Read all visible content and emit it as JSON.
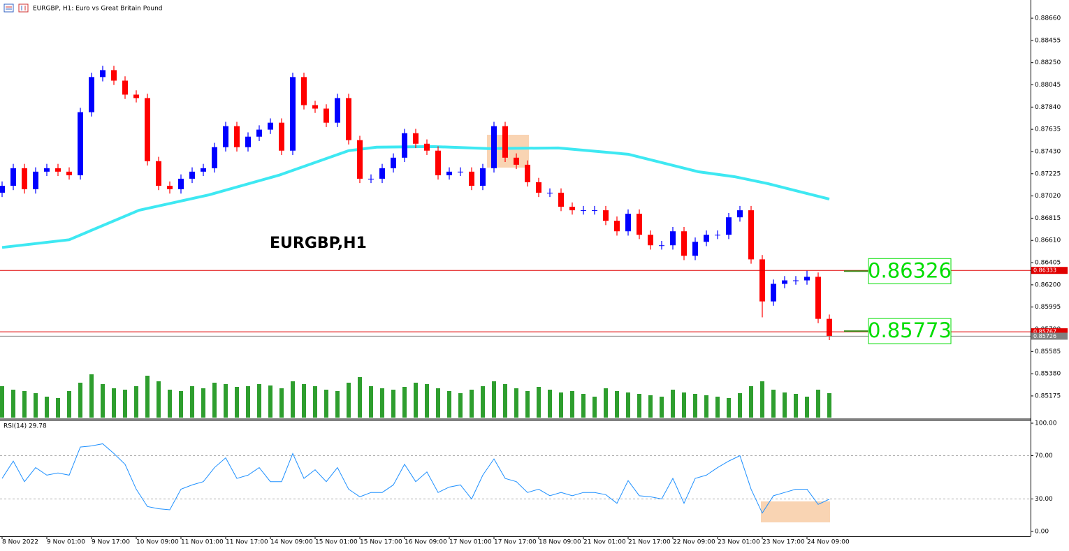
{
  "chart_data": {
    "type": "candlestick",
    "title": "EURGBP, H1:  Euro vs Great Britain Pound",
    "watermark": "EURGBP,H1",
    "up_color": "#0000ff",
    "down_color": "#ff0000",
    "x": [
      0,
      4,
      8,
      12,
      16,
      20,
      24,
      28,
      32,
      36,
      40,
      44,
      48,
      52,
      56,
      60,
      64,
      68,
      72,
      76,
      80,
      84,
      88,
      92,
      96,
      100,
      104,
      108,
      112,
      116,
      120,
      124,
      128,
      132,
      136,
      140,
      144,
      148,
      152,
      156,
      160,
      164,
      168,
      172,
      176,
      180,
      184,
      188,
      192,
      196,
      200,
      204,
      208,
      212,
      216,
      220,
      224,
      228,
      232,
      236,
      240,
      244,
      248,
      252,
      256,
      260,
      264,
      268,
      272,
      276,
      280,
      284,
      288,
      292,
      296
    ],
    "open": [
      0.8705,
      0.87114,
      0.87276,
      0.87082,
      0.87244,
      0.87276,
      0.87244,
      0.87211,
      0.87793,
      0.88117,
      0.88181,
      0.88084,
      0.87955,
      0.87923,
      0.87341,
      0.87114,
      0.87082,
      0.87179,
      0.87244,
      0.87276,
      0.8747,
      0.87664,
      0.8747,
      0.87567,
      0.87632,
      0.87696,
      0.87438,
      0.88117,
      0.87858,
      0.87826,
      0.87696,
      0.87923,
      0.87535,
      0.87179,
      0.87179,
      0.87276,
      0.87373,
      0.87599,
      0.87502,
      0.87438,
      0.87211,
      0.87244,
      0.87244,
      0.87114,
      0.87276,
      0.87664,
      0.87373,
      0.87308,
      0.87147,
      0.8705,
      0.8705,
      0.8692,
      0.86888,
      0.86888,
      0.86888,
      0.86791,
      0.86694,
      0.86856,
      0.86662,
      0.86565,
      0.86565,
      0.86694,
      0.86468,
      0.86597,
      0.86662,
      0.86662,
      0.86823,
      0.86888,
      0.86435,
      0.86047,
      0.86209,
      0.86241,
      0.86241,
      0.86274,
      0.85886
    ],
    "high": [
      0.87154,
      0.87316,
      0.87316,
      0.87284,
      0.87316,
      0.87316,
      0.87284,
      0.87833,
      0.88157,
      0.88221,
      0.88221,
      0.88124,
      0.87995,
      0.87963,
      0.87381,
      0.87154,
      0.87219,
      0.87284,
      0.87316,
      0.8751,
      0.87704,
      0.87704,
      0.87607,
      0.87672,
      0.87736,
      0.87736,
      0.88157,
      0.88157,
      0.87898,
      0.87866,
      0.87963,
      0.87963,
      0.87575,
      0.87219,
      0.87316,
      0.87413,
      0.87639,
      0.87639,
      0.87542,
      0.87478,
      0.87284,
      0.87284,
      0.87284,
      0.87316,
      0.87704,
      0.87704,
      0.87413,
      0.87348,
      0.87187,
      0.8709,
      0.8709,
      0.8696,
      0.86928,
      0.86928,
      0.86928,
      0.86831,
      0.86896,
      0.86896,
      0.86702,
      0.86605,
      0.86734,
      0.86734,
      0.86637,
      0.86702,
      0.86702,
      0.86863,
      0.86928,
      0.86928,
      0.86475,
      0.86249,
      0.86281,
      0.86281,
      0.8633,
      0.86314,
      0.85926
    ],
    "low": [
      0.8701,
      0.87074,
      0.87042,
      0.87042,
      0.87204,
      0.87204,
      0.87171,
      0.87171,
      0.87753,
      0.88077,
      0.88044,
      0.87915,
      0.87883,
      0.87301,
      0.87074,
      0.87042,
      0.87042,
      0.87139,
      0.87204,
      0.87236,
      0.8743,
      0.8743,
      0.8743,
      0.87527,
      0.87592,
      0.87398,
      0.87398,
      0.87818,
      0.87786,
      0.87656,
      0.87656,
      0.87495,
      0.87139,
      0.87139,
      0.87139,
      0.87236,
      0.87333,
      0.87462,
      0.87398,
      0.87171,
      0.87171,
      0.87204,
      0.87074,
      0.87074,
      0.87236,
      0.87333,
      0.87268,
      0.87107,
      0.8701,
      0.8701,
      0.8688,
      0.86848,
      0.86848,
      0.86848,
      0.86751,
      0.86654,
      0.86654,
      0.86622,
      0.86525,
      0.86525,
      0.86525,
      0.86428,
      0.86428,
      0.86557,
      0.86622,
      0.86622,
      0.86783,
      0.86395,
      0.859,
      0.86007,
      0.86169,
      0.86201,
      0.86201,
      0.85846,
      0.8569
    ],
    "close": [
      0.87114,
      0.87276,
      0.87082,
      0.87244,
      0.87276,
      0.87244,
      0.87211,
      0.87793,
      0.88117,
      0.88181,
      0.88084,
      0.87955,
      0.87923,
      0.87341,
      0.87114,
      0.87082,
      0.87179,
      0.87244,
      0.87276,
      0.8747,
      0.87664,
      0.8747,
      0.87567,
      0.87632,
      0.87696,
      0.87438,
      0.88117,
      0.87858,
      0.87826,
      0.87696,
      0.87923,
      0.87535,
      0.87179,
      0.87179,
      0.87276,
      0.87373,
      0.87599,
      0.87502,
      0.87438,
      0.87211,
      0.87244,
      0.87244,
      0.87114,
      0.87276,
      0.87664,
      0.87373,
      0.87308,
      0.87147,
      0.8705,
      0.8705,
      0.8692,
      0.86888,
      0.86888,
      0.86888,
      0.86791,
      0.86694,
      0.86856,
      0.86662,
      0.86565,
      0.86565,
      0.86694,
      0.86468,
      0.86597,
      0.86662,
      0.86662,
      0.86823,
      0.86888,
      0.86435,
      0.86047,
      0.86209,
      0.86241,
      0.86241,
      0.86274,
      0.85886,
      0.85726
    ],
    "xlim": [
      0,
      368
    ],
    "xticks": [
      {
        "value": 0,
        "label": "8 Nov 2022"
      },
      {
        "value": 16,
        "label": "9 Nov 01:00"
      },
      {
        "value": 32,
        "label": "9 Nov 17:00"
      },
      {
        "value": 48,
        "label": "10 Nov 09:00"
      },
      {
        "value": 64,
        "label": "11 Nov 01:00"
      },
      {
        "value": 80,
        "label": "11 Nov 17:00"
      },
      {
        "value": 96,
        "label": "14 Nov 09:00"
      },
      {
        "value": 112,
        "label": "15 Nov 01:00"
      },
      {
        "value": 128,
        "label": "15 Nov 17:00"
      },
      {
        "value": 144,
        "label": "16 Nov 09:00"
      },
      {
        "value": 160,
        "label": "17 Nov 01:00"
      },
      {
        "value": 176,
        "label": "17 Nov 17:00"
      },
      {
        "value": 192,
        "label": "18 Nov 09:00"
      },
      {
        "value": 208,
        "label": "21 Nov 01:00"
      },
      {
        "value": 224,
        "label": "21 Nov 17:00"
      },
      {
        "value": 240,
        "label": "22 Nov 09:00"
      },
      {
        "value": 256,
        "label": "23 Nov 01:00"
      },
      {
        "value": 272,
        "label": "23 Nov 17:00"
      },
      {
        "value": 288,
        "label": "24 Nov 09:00"
      }
    ],
    "ylim": [
      0.84962,
      0.88828
    ],
    "yticks": [
      {
        "value": 0.8866,
        "label": "0.88660"
      },
      {
        "value": 0.88455,
        "label": "0.88455"
      },
      {
        "value": 0.8825,
        "label": "0.88250"
      },
      {
        "value": 0.88045,
        "label": "0.88045"
      },
      {
        "value": 0.8784,
        "label": "0.87840"
      },
      {
        "value": 0.87635,
        "label": "0.87635"
      },
      {
        "value": 0.8743,
        "label": "0.87430"
      },
      {
        "value": 0.87225,
        "label": "0.87225"
      },
      {
        "value": 0.8702,
        "label": "0.87020"
      },
      {
        "value": 0.86815,
        "label": "0.86815"
      },
      {
        "value": 0.8661,
        "label": "0.86610"
      },
      {
        "value": 0.86405,
        "label": "0.86405"
      },
      {
        "value": 0.862,
        "label": "0.86200"
      },
      {
        "value": 0.85995,
        "label": "0.85995"
      },
      {
        "value": 0.8579,
        "label": "0.85790"
      },
      {
        "value": 0.85585,
        "label": "0.85585"
      },
      {
        "value": 0.8538,
        "label": "0.85380"
      },
      {
        "value": 0.85175,
        "label": "0.85175"
      }
    ],
    "ma": {
      "color": "#3ee8f2",
      "x": [
        0,
        24,
        49,
        74,
        99,
        124,
        134,
        154,
        174,
        199,
        224,
        249,
        262,
        274,
        296
      ],
      "values": [
        0.86545,
        0.86616,
        0.86888,
        0.8703,
        0.87211,
        0.87438,
        0.8747,
        0.87476,
        0.87457,
        0.87463,
        0.87405,
        0.87244,
        0.87198,
        0.87134,
        0.86991
      ]
    },
    "volume": {
      "color": "#2e9e2e",
      "values": [
        45,
        40,
        38,
        35,
        30,
        28,
        38,
        50,
        62,
        48,
        42,
        40,
        45,
        60,
        52,
        40,
        38,
        45,
        42,
        50,
        48,
        44,
        45,
        48,
        46,
        42,
        52,
        48,
        45,
        40,
        38,
        50,
        58,
        45,
        42,
        40,
        44,
        50,
        48,
        42,
        38,
        35,
        40,
        45,
        52,
        48,
        42,
        38,
        44,
        40,
        36,
        38,
        34,
        30,
        42,
        38,
        36,
        34,
        32,
        30,
        40,
        36,
        34,
        32,
        30,
        28,
        35,
        45,
        52,
        40,
        36,
        34,
        30,
        40,
        35
      ]
    },
    "levels": [
      {
        "value": 0.86333,
        "label": "0.86333",
        "color": "#e00000"
      },
      {
        "value": 0.85767,
        "label": "0.85767",
        "color": "#e00000"
      },
      {
        "value": 0.85726,
        "label": "0.85726",
        "color": "#808080"
      }
    ],
    "annotations": [
      {
        "value": 0.86326,
        "label": "0.86326",
        "color": "#00dd00"
      },
      {
        "value": 0.85773,
        "label": "0.85773",
        "color": "#00dd00"
      }
    ],
    "rsi": {
      "label": "RSI(14) 29.78",
      "color": "#1e90ff",
      "values": [
        49,
        65,
        46,
        59,
        52,
        54,
        52,
        78,
        79,
        81,
        72,
        62,
        39,
        23,
        21,
        20,
        39,
        43,
        46,
        59,
        68,
        49,
        52,
        59,
        46,
        46,
        72,
        49,
        57,
        46,
        59,
        39,
        32,
        36,
        36,
        43,
        62,
        46,
        55,
        36,
        41,
        43,
        30,
        52,
        67,
        49,
        46,
        36,
        39,
        33,
        36,
        33,
        36,
        36,
        34,
        26,
        47,
        33,
        32,
        30,
        49,
        26,
        49,
        52,
        59,
        65,
        70,
        39,
        17,
        33,
        36,
        39,
        39,
        25,
        29.78
      ],
      "ylim": [
        0,
        100
      ],
      "yticks": [
        {
          "value": 100,
          "label": "100.00"
        },
        {
          "value": 70,
          "label": "70.00"
        },
        {
          "value": 30,
          "label": "30.00"
        },
        {
          "value": 0,
          "label": "0.00"
        }
      ]
    }
  }
}
